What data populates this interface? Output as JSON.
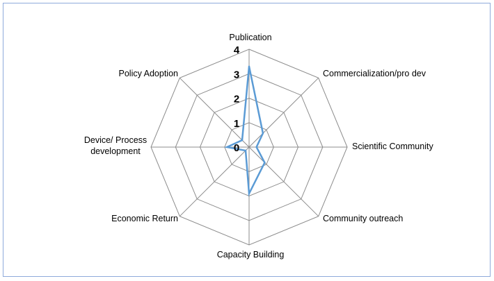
{
  "chart_data": {
    "type": "radar",
    "title": "",
    "categories": [
      "Publication",
      "Commercialization/pro dev",
      "Scientific Community",
      "Community outreach",
      "Capacity  Building",
      "Economic Return",
      "Device/ Process development",
      "Policy Adoption"
    ],
    "category_lines": [
      [
        "Publication"
      ],
      [
        "Commercialization/pro dev"
      ],
      [
        "Scientific Community"
      ],
      [
        "Community outreach"
      ],
      [
        "Capacity  Building"
      ],
      [
        "Economic Return"
      ],
      [
        "Device/ Process",
        "development"
      ],
      [
        "Policy Adoption"
      ]
    ],
    "series": [
      {
        "values": [
          3.3,
          0.8,
          0.3,
          0.9,
          1.9,
          0.2,
          0.9,
          0.4
        ]
      }
    ],
    "ticks": [
      "0",
      "1",
      "2",
      "3",
      "4"
    ],
    "rlim": [
      0,
      4
    ],
    "grid": true,
    "legend": "none",
    "colors": {
      "series": "#5b9bd5",
      "grid": "#8c8c8c",
      "frame": "#8eaadb"
    }
  }
}
